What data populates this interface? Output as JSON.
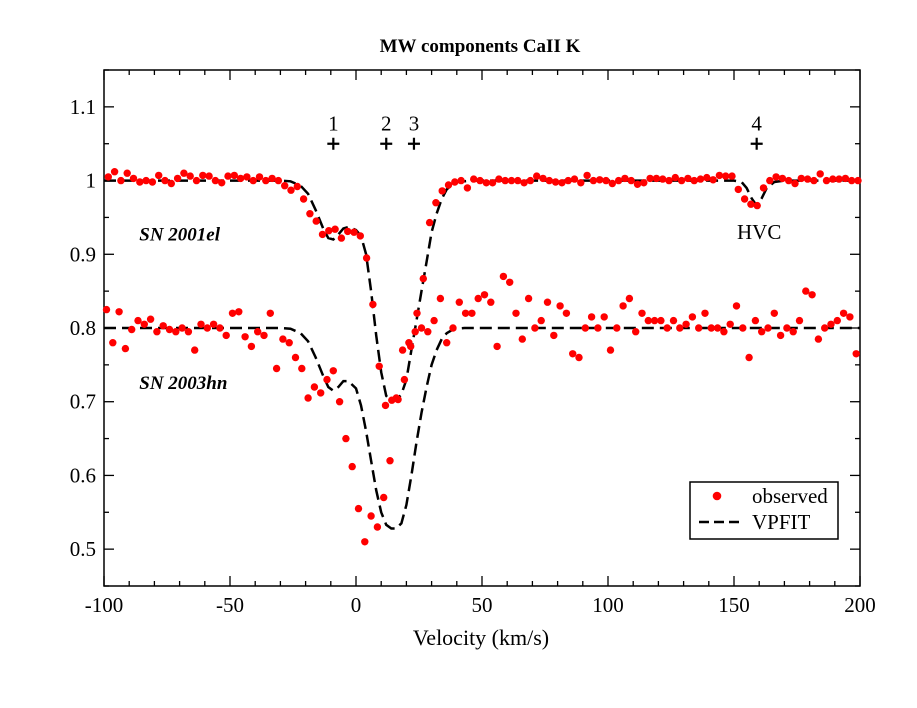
{
  "chart_data": {
    "type": "line",
    "title": "MW components CaII K",
    "xlabel": "Velocity (km/s)",
    "ylabel": "",
    "xlim": [
      -100,
      200
    ],
    "ylim": [
      0.45,
      1.15
    ],
    "x_ticks": [
      -100,
      -50,
      0,
      50,
      100,
      150,
      200
    ],
    "x_tick_labels": [
      "-100",
      "-50",
      "0",
      "50",
      "100",
      "150",
      "200"
    ],
    "y_ticks": [
      0.5,
      0.6,
      0.7,
      0.8,
      0.9,
      1.0,
      1.1
    ],
    "y_tick_labels": [
      "0.5",
      "0.6",
      "0.7",
      "0.8",
      "0.9",
      "1",
      "1.1"
    ],
    "grid": false,
    "legend": {
      "position": "bottom-right",
      "entries": [
        "observed",
        "VPFIT"
      ]
    },
    "colors": {
      "observed": "#ff0000",
      "fit": "#000000",
      "text": "#000000"
    },
    "components": [
      {
        "label": "1",
        "velocity": -9,
        "y": 1.05
      },
      {
        "label": "2",
        "velocity": 12,
        "y": 1.05
      },
      {
        "label": "3",
        "velocity": 23,
        "y": 1.05
      },
      {
        "label": "4",
        "velocity": 159,
        "y": 1.05
      }
    ],
    "annotations": [
      {
        "text": "SN 2001el",
        "x": -86,
        "y": 0.928,
        "style": "bold-italic"
      },
      {
        "text": "SN 2003hn",
        "x": -86,
        "y": 0.727,
        "style": "bold-italic"
      },
      {
        "text": "HVC",
        "x": 160,
        "y": 0.93,
        "style": "normal"
      }
    ],
    "series": [
      {
        "name": "SN 2001el observed",
        "kind": "points",
        "x": [
          -98.3,
          -95.8,
          -93.3,
          -90.8,
          -88.3,
          -85.8,
          -83.3,
          -80.8,
          -78.3,
          -75.8,
          -73.3,
          -70.8,
          -68.3,
          -65.8,
          -63.3,
          -60.8,
          -58.3,
          -55.8,
          -53.3,
          -50.8,
          -48.3,
          -45.8,
          -43.3,
          -40.8,
          -38.3,
          -35.8,
          -33.3,
          -30.8,
          -28.3,
          -25.8,
          -23.3,
          -20.8,
          -18.3,
          -15.8,
          -13.3,
          -10.8,
          -8.3,
          -5.8,
          -3.3,
          -0.8,
          1.7,
          4.2,
          6.7,
          9.2,
          11.7,
          14.2,
          16.7,
          19.2,
          21.7,
          24.2,
          26.7,
          29.2,
          31.7,
          34.2,
          36.7,
          39.2,
          41.7,
          44.2,
          46.7,
          49.2,
          51.7,
          54.2,
          56.7,
          59.2,
          61.7,
          64.2,
          66.7,
          69.2,
          71.7,
          74.2,
          76.7,
          79.2,
          81.7,
          84.2,
          86.7,
          89.2,
          91.7,
          94.2,
          96.7,
          99.2,
          101.7,
          104.2,
          106.7,
          109.2,
          111.7,
          114.2,
          116.7,
          119.2,
          121.7,
          124.2,
          126.7,
          129.2,
          131.7,
          134.2,
          136.7,
          139.2,
          141.7,
          144.2,
          146.7,
          149.2,
          151.7,
          154.2,
          156.7,
          159.2,
          161.7,
          164.2,
          166.7,
          169.2,
          171.7,
          174.2,
          176.7,
          179.2,
          181.7,
          184.2,
          186.7,
          189.2,
          191.7,
          194.2,
          196.7,
          199.2
        ],
        "y": [
          1.005,
          1.012,
          1.0,
          1.01,
          1.003,
          0.998,
          1.0,
          0.998,
          1.007,
          1.0,
          0.996,
          1.003,
          1.01,
          1.006,
          1.0,
          1.007,
          1.006,
          1.0,
          0.997,
          1.006,
          1.007,
          1.003,
          1.005,
          1.0,
          1.005,
          1.0,
          1.003,
          1.0,
          0.993,
          0.987,
          0.992,
          0.975,
          0.955,
          0.945,
          0.927,
          0.932,
          0.934,
          0.922,
          0.931,
          0.93,
          0.925,
          0.895,
          0.832,
          0.748,
          0.695,
          0.702,
          0.703,
          0.73,
          0.775,
          0.82,
          0.867,
          0.943,
          0.97,
          0.986,
          0.994,
          0.998,
          1.0,
          0.99,
          1.002,
          1.0,
          0.997,
          0.997,
          1.002,
          1.0,
          1.0,
          1.0,
          0.997,
          1.0,
          1.006,
          1.003,
          1.0,
          0.998,
          0.997,
          1.0,
          1.002,
          0.997,
          1.007,
          1.0,
          1.001,
          1.0,
          0.996,
          1.0,
          1.003,
          1.0,
          0.995,
          0.997,
          1.003,
          1.003,
          1.002,
          1.0,
          1.004,
          1.0,
          1.003,
          1.0,
          1.002,
          1.004,
          1.001,
          1.007,
          1.006,
          1.006,
          0.988,
          0.975,
          0.968,
          0.966,
          0.99,
          1.0,
          1.005,
          1.003,
          1.0,
          0.996,
          1.003,
          1.002,
          1.0,
          1.009,
          1.0,
          1.002,
          1.002,
          1.003,
          1.0,
          1.0
        ]
      },
      {
        "name": "SN 2003hn observed",
        "kind": "points",
        "x": [
          -99,
          -96.5,
          -94,
          -91.5,
          -89,
          -86.5,
          -84,
          -81.5,
          -79,
          -76.5,
          -74,
          -71.5,
          -69,
          -66.5,
          -64,
          -61.5,
          -59,
          -56.5,
          -54,
          -51.5,
          -49,
          -46.5,
          -44,
          -41.5,
          -39,
          -36.5,
          -34,
          -31.5,
          -29,
          -26.5,
          -24,
          -21.5,
          -19,
          -16.5,
          -14,
          -11.5,
          -9,
          -6.5,
          -4,
          -1.5,
          1,
          3.5,
          6,
          8.5,
          11,
          13.5,
          16,
          18.5,
          21,
          23.5,
          26,
          28.5,
          31,
          33.5,
          36,
          38.5,
          41,
          43.5,
          46,
          48.5,
          51,
          53.5,
          56,
          58.5,
          61,
          63.5,
          66,
          68.5,
          71,
          73.5,
          76,
          78.5,
          81,
          83.5,
          86,
          88.5,
          91,
          93.5,
          96,
          98.5,
          101,
          103.5,
          106,
          108.5,
          111,
          113.5,
          116,
          118.5,
          121,
          123.5,
          126,
          128.5,
          131,
          133.5,
          136,
          138.5,
          141,
          143.5,
          146,
          148.5,
          151,
          153.5,
          156,
          158.5,
          161,
          163.5,
          166,
          168.5,
          171,
          173.5,
          176,
          178.5,
          181,
          183.5,
          186,
          188.5,
          191,
          193.5,
          196,
          198.5
        ],
        "y": [
          0.825,
          0.78,
          0.822,
          0.772,
          0.798,
          0.81,
          0.805,
          0.812,
          0.795,
          0.803,
          0.798,
          0.795,
          0.8,
          0.795,
          0.77,
          0.805,
          0.8,
          0.805,
          0.8,
          0.79,
          0.82,
          0.822,
          0.788,
          0.775,
          0.795,
          0.79,
          0.82,
          0.745,
          0.785,
          0.78,
          0.76,
          0.745,
          0.705,
          0.72,
          0.712,
          0.73,
          0.742,
          0.7,
          0.65,
          0.612,
          0.555,
          0.51,
          0.545,
          0.53,
          0.57,
          0.62,
          0.705,
          0.77,
          0.78,
          0.795,
          0.8,
          0.795,
          0.81,
          0.84,
          0.78,
          0.8,
          0.835,
          0.82,
          0.82,
          0.84,
          0.845,
          0.835,
          0.775,
          0.87,
          0.862,
          0.82,
          0.785,
          0.84,
          0.8,
          0.81,
          0.835,
          0.79,
          0.83,
          0.82,
          0.765,
          0.76,
          0.8,
          0.815,
          0.8,
          0.815,
          0.77,
          0.8,
          0.83,
          0.84,
          0.795,
          0.82,
          0.81,
          0.81,
          0.81,
          0.8,
          0.81,
          0.8,
          0.805,
          0.815,
          0.8,
          0.82,
          0.8,
          0.8,
          0.795,
          0.805,
          0.83,
          0.8,
          0.76,
          0.81,
          0.795,
          0.8,
          0.82,
          0.79,
          0.8,
          0.795,
          0.81,
          0.85,
          0.845,
          0.785,
          0.8,
          0.805,
          0.81,
          0.82,
          0.815,
          0.765
        ]
      },
      {
        "name": "SN 2001el VPFIT",
        "kind": "dashed-line",
        "x": [
          -100,
          -30,
          -26,
          -22,
          -19,
          -16,
          -13,
          -11,
          -9,
          -7,
          -5,
          -3,
          0,
          2,
          4,
          6,
          8,
          10,
          12,
          14,
          16,
          18,
          20,
          22,
          24,
          26,
          28,
          30,
          32,
          34,
          36,
          38,
          40,
          43,
          46,
          50,
          150,
          153,
          155,
          157,
          159,
          161,
          163,
          166,
          170,
          200
        ],
        "y": [
          1.0,
          1.0,
          0.999,
          0.993,
          0.982,
          0.96,
          0.935,
          0.922,
          0.92,
          0.927,
          0.935,
          0.937,
          0.933,
          0.925,
          0.9,
          0.85,
          0.79,
          0.74,
          0.708,
          0.7,
          0.702,
          0.71,
          0.73,
          0.77,
          0.81,
          0.85,
          0.89,
          0.93,
          0.955,
          0.975,
          0.988,
          0.994,
          0.998,
          0.999,
          1.0,
          1.0,
          1.0,
          0.998,
          0.99,
          0.976,
          0.966,
          0.976,
          0.99,
          0.998,
          1.0,
          1.0
        ]
      },
      {
        "name": "SN 2003hn VPFIT",
        "kind": "dashed-line",
        "x": [
          -100,
          -30,
          -26,
          -22,
          -19,
          -16,
          -13,
          -11,
          -9,
          -7,
          -5,
          -3,
          0,
          2,
          4,
          6,
          8,
          10,
          12,
          14,
          16,
          18,
          20,
          22,
          24,
          26,
          28,
          30,
          32,
          34,
          36,
          38,
          40,
          43,
          46,
          50,
          200
        ],
        "y": [
          0.8,
          0.8,
          0.799,
          0.793,
          0.782,
          0.76,
          0.735,
          0.72,
          0.715,
          0.72,
          0.728,
          0.728,
          0.718,
          0.695,
          0.66,
          0.62,
          0.58,
          0.55,
          0.533,
          0.528,
          0.528,
          0.535,
          0.56,
          0.6,
          0.645,
          0.685,
          0.72,
          0.75,
          0.77,
          0.785,
          0.793,
          0.797,
          0.799,
          0.8,
          0.8,
          0.8,
          0.8
        ]
      }
    ]
  }
}
